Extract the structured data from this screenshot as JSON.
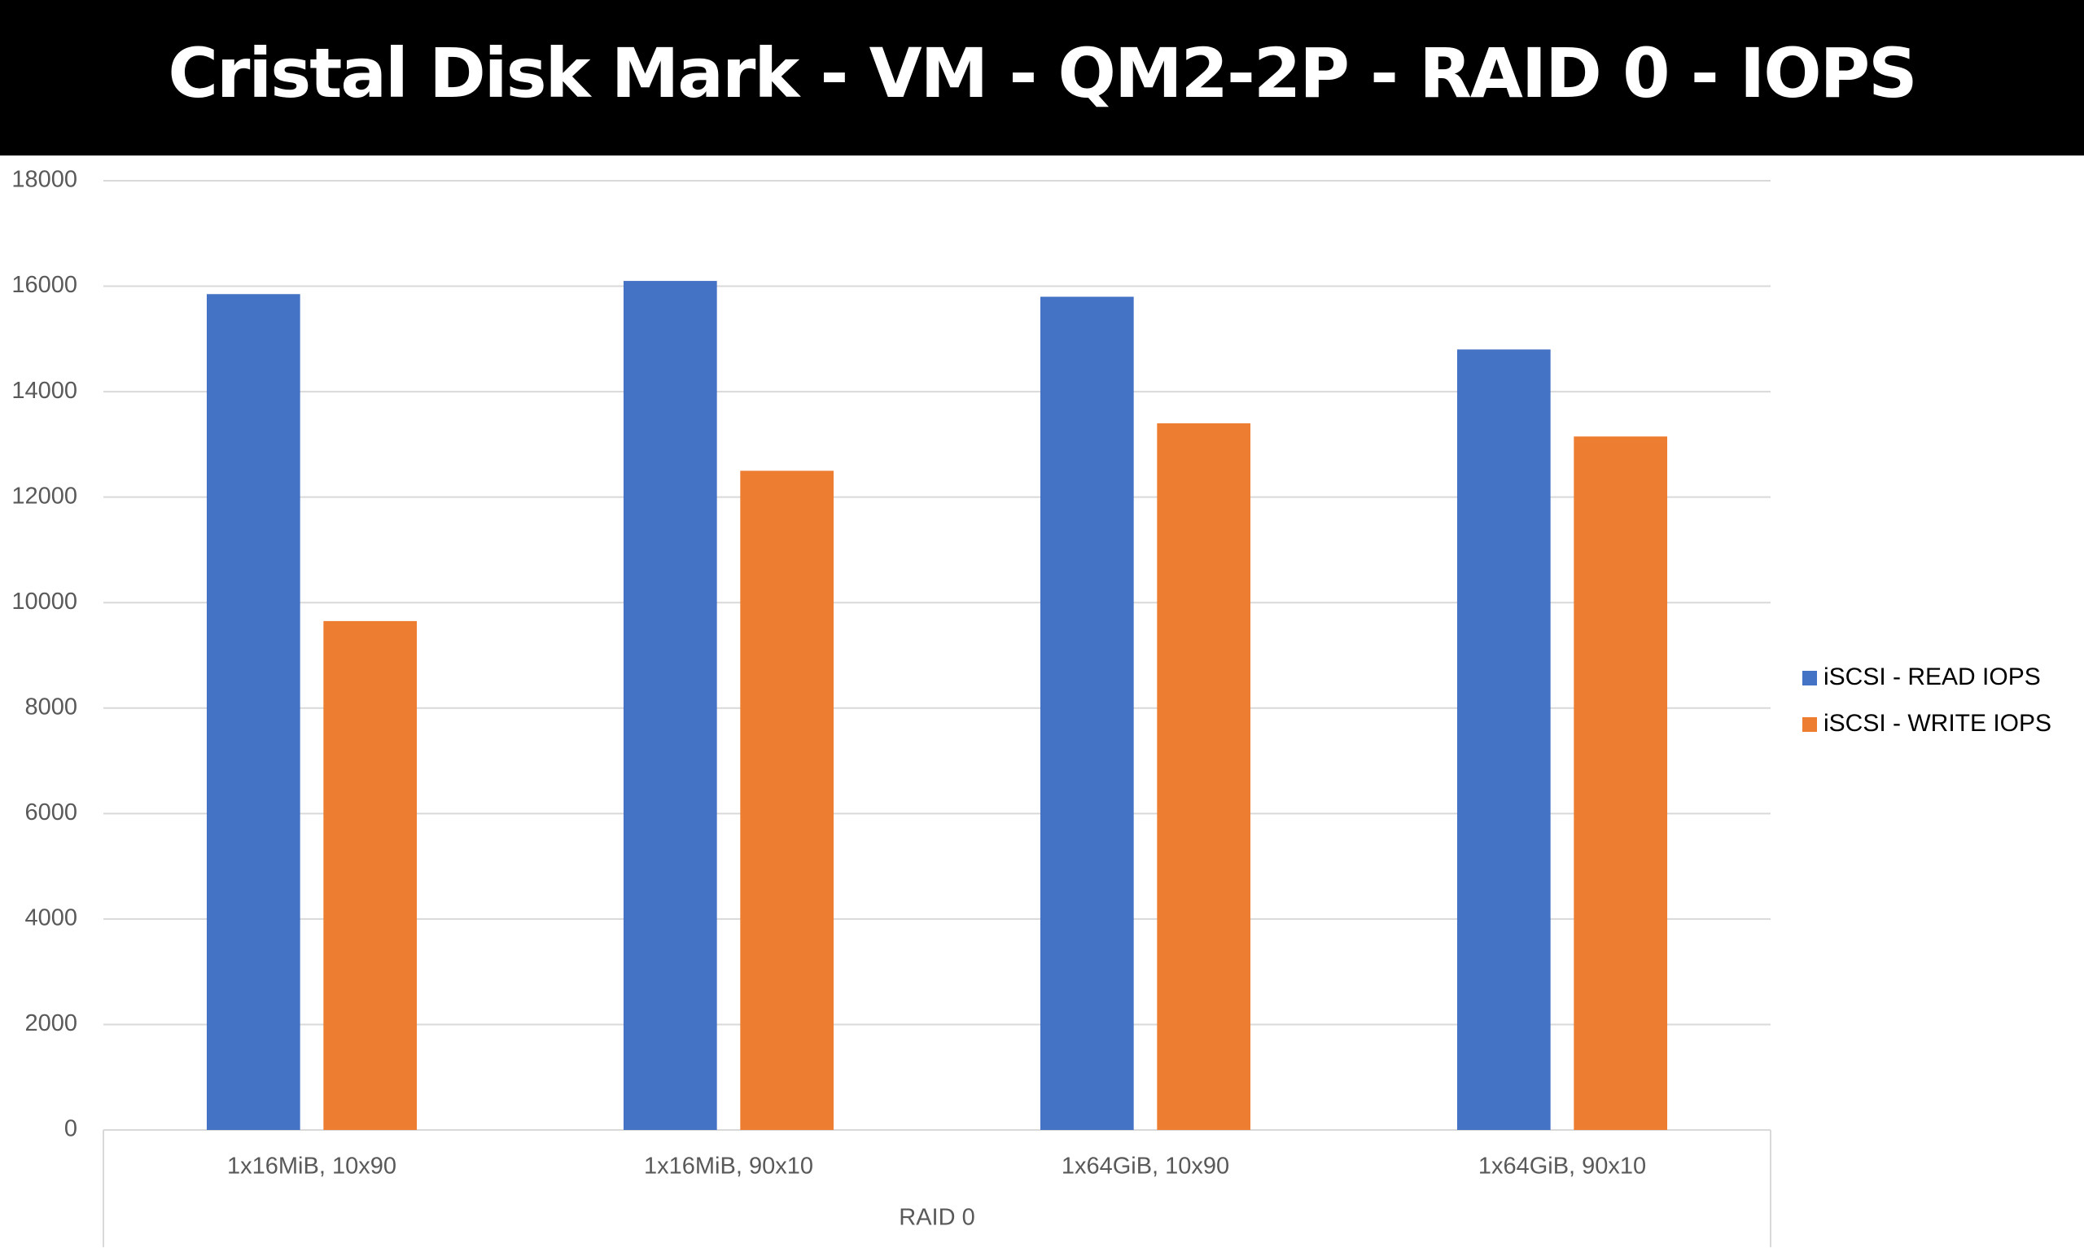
{
  "chart_data": {
    "type": "bar",
    "title": "Cristal Disk Mark - VM - QM2-2P - RAID 0 - IOPS",
    "x_label": "RAID 0",
    "categories": [
      "1x16MiB, 10x90",
      "1x16MiB, 90x10",
      "1x64GiB, 10x90",
      "1x64GiB, 90x10"
    ],
    "series": [
      {
        "name": "iSCSI  - READ IOPS",
        "color": "#4472c4",
        "values": [
          15850,
          16100,
          15800,
          14800
        ]
      },
      {
        "name": "iSCSI  - WRITE IOPS",
        "color": "#ed7d31",
        "values": [
          9650,
          12500,
          13400,
          13150
        ]
      }
    ],
    "ylim": [
      0,
      18000
    ],
    "yticks": [
      0,
      2000,
      4000,
      6000,
      8000,
      10000,
      12000,
      14000,
      16000,
      18000
    ],
    "grid": true,
    "legend": "right"
  }
}
